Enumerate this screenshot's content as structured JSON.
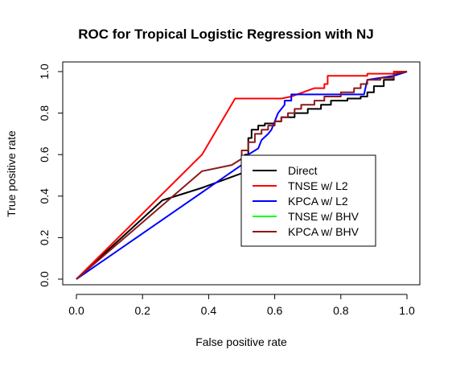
{
  "chart_data": {
    "type": "line",
    "title": "ROC for Tropical Logistic Regression with NJ",
    "xlabel": "False positive rate",
    "ylabel": "True positive rate",
    "xlim": [
      0,
      1
    ],
    "ylim": [
      0,
      1
    ],
    "xticks": [
      "0.0",
      "0.2",
      "0.4",
      "0.6",
      "0.8",
      "1.0"
    ],
    "yticks": [
      "0.0",
      "0.2",
      "0.4",
      "0.6",
      "0.8",
      "1.0"
    ],
    "grid": false,
    "legend_position": "center-right",
    "series": [
      {
        "name": "Direct",
        "color": "#000000",
        "points": [
          [
            0,
            0
          ],
          [
            0.26,
            0.38
          ],
          [
            0.38,
            0.44
          ],
          [
            0.5,
            0.51
          ],
          [
            0.51,
            0.6
          ],
          [
            0.52,
            0.6
          ],
          [
            0.52,
            0.68
          ],
          [
            0.53,
            0.68
          ],
          [
            0.53,
            0.72
          ],
          [
            0.55,
            0.72
          ],
          [
            0.55,
            0.74
          ],
          [
            0.57,
            0.74
          ],
          [
            0.57,
            0.75
          ],
          [
            0.6,
            0.75
          ],
          [
            0.6,
            0.76
          ],
          [
            0.62,
            0.76
          ],
          [
            0.62,
            0.78
          ],
          [
            0.66,
            0.78
          ],
          [
            0.66,
            0.8
          ],
          [
            0.7,
            0.8
          ],
          [
            0.7,
            0.82
          ],
          [
            0.74,
            0.82
          ],
          [
            0.74,
            0.84
          ],
          [
            0.77,
            0.84
          ],
          [
            0.77,
            0.86
          ],
          [
            0.82,
            0.86
          ],
          [
            0.82,
            0.87
          ],
          [
            0.86,
            0.87
          ],
          [
            0.86,
            0.88
          ],
          [
            0.88,
            0.88
          ],
          [
            0.88,
            0.9
          ],
          [
            0.9,
            0.9
          ],
          [
            0.9,
            0.93
          ],
          [
            0.93,
            0.93
          ],
          [
            0.93,
            0.96
          ],
          [
            0.96,
            0.96
          ],
          [
            0.96,
            0.98
          ],
          [
            1,
            1
          ]
        ]
      },
      {
        "name": "TNSE w/ L2",
        "color": "#ff0000",
        "points": [
          [
            0,
            0
          ],
          [
            0.38,
            0.6
          ],
          [
            0.48,
            0.87
          ],
          [
            0.58,
            0.87
          ],
          [
            0.59,
            0.87
          ],
          [
            0.6,
            0.87
          ],
          [
            0.62,
            0.87
          ],
          [
            0.65,
            0.88
          ],
          [
            0.72,
            0.92
          ],
          [
            0.75,
            0.92
          ],
          [
            0.75,
            0.94
          ],
          [
            0.76,
            0.94
          ],
          [
            0.76,
            0.98
          ],
          [
            0.88,
            0.98
          ],
          [
            0.88,
            0.99
          ],
          [
            0.96,
            0.99
          ],
          [
            0.96,
            1
          ],
          [
            1,
            1
          ]
        ]
      },
      {
        "name": "KPCA w/ L2",
        "color": "#0000ff",
        "points": [
          [
            0,
            0
          ],
          [
            0.5,
            0.55
          ],
          [
            0.52,
            0.6
          ],
          [
            0.55,
            0.63
          ],
          [
            0.56,
            0.67
          ],
          [
            0.58,
            0.7
          ],
          [
            0.59,
            0.72
          ],
          [
            0.6,
            0.76
          ],
          [
            0.61,
            0.8
          ],
          [
            0.63,
            0.84
          ],
          [
            0.63,
            0.86
          ],
          [
            0.65,
            0.86
          ],
          [
            0.65,
            0.89
          ],
          [
            0.87,
            0.89
          ],
          [
            0.88,
            0.96
          ],
          [
            0.96,
            0.98
          ],
          [
            1,
            1
          ]
        ]
      },
      {
        "name": "TNSE w/ BHV",
        "color": "#00ff00",
        "points": []
      },
      {
        "name": "KPCA w/ BHV",
        "color": "#8b1a1a",
        "points": [
          [
            0,
            0
          ],
          [
            0.38,
            0.52
          ],
          [
            0.47,
            0.55
          ],
          [
            0.5,
            0.58
          ],
          [
            0.5,
            0.62
          ],
          [
            0.52,
            0.62
          ],
          [
            0.52,
            0.66
          ],
          [
            0.54,
            0.66
          ],
          [
            0.54,
            0.7
          ],
          [
            0.56,
            0.7
          ],
          [
            0.56,
            0.72
          ],
          [
            0.58,
            0.72
          ],
          [
            0.58,
            0.74
          ],
          [
            0.6,
            0.74
          ],
          [
            0.6,
            0.76
          ],
          [
            0.62,
            0.76
          ],
          [
            0.62,
            0.78
          ],
          [
            0.64,
            0.78
          ],
          [
            0.64,
            0.8
          ],
          [
            0.66,
            0.8
          ],
          [
            0.66,
            0.82
          ],
          [
            0.68,
            0.82
          ],
          [
            0.68,
            0.84
          ],
          [
            0.72,
            0.84
          ],
          [
            0.72,
            0.86
          ],
          [
            0.75,
            0.86
          ],
          [
            0.75,
            0.88
          ],
          [
            0.8,
            0.88
          ],
          [
            0.8,
            0.9
          ],
          [
            0.84,
            0.9
          ],
          [
            0.84,
            0.92
          ],
          [
            0.86,
            0.92
          ],
          [
            0.86,
            0.94
          ],
          [
            0.88,
            0.94
          ],
          [
            0.88,
            0.96
          ],
          [
            0.92,
            0.96
          ],
          [
            0.92,
            0.97
          ],
          [
            0.96,
            0.97
          ],
          [
            0.96,
            0.99
          ],
          [
            1,
            1
          ]
        ]
      }
    ]
  }
}
